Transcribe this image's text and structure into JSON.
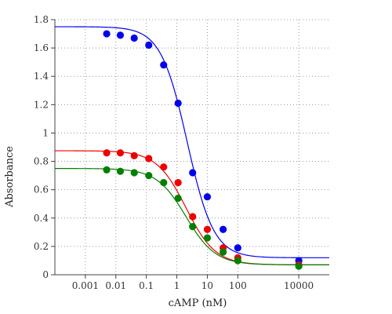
{
  "chart_data": {
    "type": "scatter",
    "title": "",
    "xlabel": "cAMP (nM)",
    "ylabel": "Absorbance",
    "x_scale": "log",
    "xlim": [
      0.0001,
      100000
    ],
    "ylim": [
      0,
      1.8
    ],
    "x_ticks": [
      {
        "value": 0.001,
        "label": "0.001"
      },
      {
        "value": 0.01,
        "label": "0.01"
      },
      {
        "value": 0.1,
        "label": "0.1"
      },
      {
        "value": 1,
        "label": "1"
      },
      {
        "value": 10,
        "label": "10"
      },
      {
        "value": 100,
        "label": "100"
      },
      {
        "value": 10000,
        "label": "10000"
      }
    ],
    "y_ticks": [
      {
        "value": 0,
        "label": "0"
      },
      {
        "value": 0.2,
        "label": "0.2"
      },
      {
        "value": 0.4,
        "label": "0.4"
      },
      {
        "value": 0.6,
        "label": "0.6"
      },
      {
        "value": 0.8,
        "label": "0.8"
      },
      {
        "value": 1,
        "label": "1"
      },
      {
        "value": 1.2,
        "label": "1.2"
      },
      {
        "value": 1.4,
        "label": "1.4"
      },
      {
        "value": 1.6,
        "label": "1.6"
      },
      {
        "value": 1.8,
        "label": "1.8"
      }
    ],
    "grid": true,
    "legend": "none",
    "series": [
      {
        "color": "#0000ee",
        "x": [
          0.005,
          0.014,
          0.04,
          0.12,
          0.37,
          1.1,
          3.3,
          10,
          33,
          100,
          10000
        ],
        "y": [
          1.7,
          1.69,
          1.67,
          1.62,
          1.48,
          1.21,
          0.72,
          0.55,
          0.32,
          0.19,
          0.1
        ],
        "fit": {
          "top": 1.75,
          "bottom": 0.12,
          "ec50": 2.2,
          "hill": 1.0
        }
      },
      {
        "color": "#ee0000",
        "x": [
          0.005,
          0.014,
          0.04,
          0.12,
          0.37,
          1.1,
          3.3,
          10,
          33,
          100,
          10000
        ],
        "y": [
          0.86,
          0.86,
          0.84,
          0.82,
          0.76,
          0.65,
          0.41,
          0.32,
          0.19,
          0.12,
          0.07
        ],
        "fit": {
          "top": 0.875,
          "bottom": 0.07,
          "ec50": 2.0,
          "hill": 0.9
        }
      },
      {
        "color": "#008000",
        "x": [
          0.005,
          0.014,
          0.04,
          0.12,
          0.37,
          1.1,
          3.3,
          10,
          33,
          100,
          10000
        ],
        "y": [
          0.74,
          0.73,
          0.72,
          0.7,
          0.65,
          0.54,
          0.34,
          0.26,
          0.16,
          0.1,
          0.06
        ],
        "fit": {
          "top": 0.75,
          "bottom": 0.07,
          "ec50": 2.0,
          "hill": 0.9
        }
      }
    ]
  }
}
